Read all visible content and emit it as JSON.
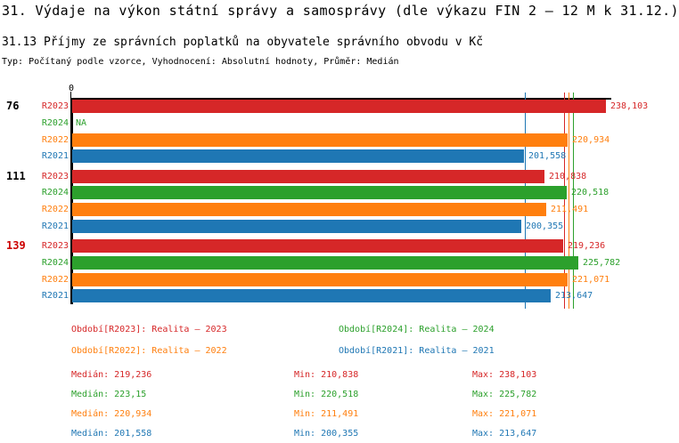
{
  "page": {
    "title": "31. Výdaje na výkon státní správy a samosprávy (dle výkazu FIN 2 – 12 M k 31.12.)",
    "subtitle": "31.13 Příjmy ze správních poplatků na obyvatele správního obvodu v Kč",
    "meta": "Typ: Počítaný podle vzorce, Vyhodnocení: Absolutní hodnoty, Průměr: Medián"
  },
  "colors": {
    "R2023": "#d62728",
    "R2024": "#2ca02c",
    "R2022": "#ff7f0e",
    "R2021": "#1f77b4",
    "axis": "#000000",
    "highlight_label": "#cc0000"
  },
  "chart_data": {
    "type": "bar",
    "orientation": "horizontal",
    "title": "31.13 Příjmy ze správních poplatků na obyvatele správního obvodu v Kč",
    "x_axis": {
      "zero_label": "0",
      "min": 0,
      "max": 238.103
    },
    "grid": false,
    "series_order": [
      "R2023",
      "R2024",
      "R2022",
      "R2021"
    ],
    "groups": [
      {
        "label": "76",
        "label_color": "#000000",
        "bars": [
          {
            "series": "R2023",
            "value": 238.103,
            "display": "238,103"
          },
          {
            "series": "R2024",
            "value": null,
            "display": "NA"
          },
          {
            "series": "R2022",
            "value": 220.934,
            "display": "220,934"
          },
          {
            "series": "R2021",
            "value": 201.558,
            "display": "201,558"
          }
        ]
      },
      {
        "label": "111",
        "label_color": "#000000",
        "bars": [
          {
            "series": "R2023",
            "value": 210.838,
            "display": "210,838"
          },
          {
            "series": "R2024",
            "value": 220.518,
            "display": "220,518"
          },
          {
            "series": "R2022",
            "value": 211.491,
            "display": "211,491"
          },
          {
            "series": "R2021",
            "value": 200.355,
            "display": "200,355"
          }
        ]
      },
      {
        "label": "139",
        "label_color": "#cc0000",
        "bars": [
          {
            "series": "R2023",
            "value": 219.236,
            "display": "219,236"
          },
          {
            "series": "R2024",
            "value": 225.782,
            "display": "225,782"
          },
          {
            "series": "R2022",
            "value": 221.071,
            "display": "221,071"
          },
          {
            "series": "R2021",
            "value": 213.647,
            "display": "213,647"
          }
        ]
      }
    ],
    "median_lines": [
      {
        "series": "R2023",
        "value": 219.236
      },
      {
        "series": "R2024",
        "value": 223.15
      },
      {
        "series": "R2022",
        "value": 220.934
      },
      {
        "series": "R2021",
        "value": 201.558
      }
    ],
    "legend": [
      {
        "series": "R2023",
        "label": "Období[R2023]: Realita – 2023",
        "col": 0,
        "row": 0
      },
      {
        "series": "R2024",
        "label": "Období[R2024]: Realita – 2024",
        "col": 1,
        "row": 0
      },
      {
        "series": "R2022",
        "label": "Období[R2022]: Realita – 2022",
        "col": 0,
        "row": 1
      },
      {
        "series": "R2021",
        "label": "Období[R2021]: Realita – 2021",
        "col": 1,
        "row": 1
      }
    ],
    "stats": [
      {
        "series": "R2023",
        "median": 219.236,
        "min": 210.838,
        "max": 238.103,
        "median_text": "Medián: 219,236",
        "min_text": "Min: 210,838",
        "max_text": "Max: 238,103"
      },
      {
        "series": "R2024",
        "median": 223.15,
        "min": 220.518,
        "max": 225.782,
        "median_text": "Medián: 223,15",
        "min_text": "Min: 220,518",
        "max_text": "Max: 225,782"
      },
      {
        "series": "R2022",
        "median": 220.934,
        "min": 211.491,
        "max": 221.071,
        "median_text": "Medián: 220,934",
        "min_text": "Min: 211,491",
        "max_text": "Max: 221,071"
      },
      {
        "series": "R2021",
        "median": 201.558,
        "min": 200.355,
        "max": 213.647,
        "median_text": "Medián: 201,558",
        "min_text": "Min: 200,355",
        "max_text": "Max: 213,647"
      }
    ]
  }
}
